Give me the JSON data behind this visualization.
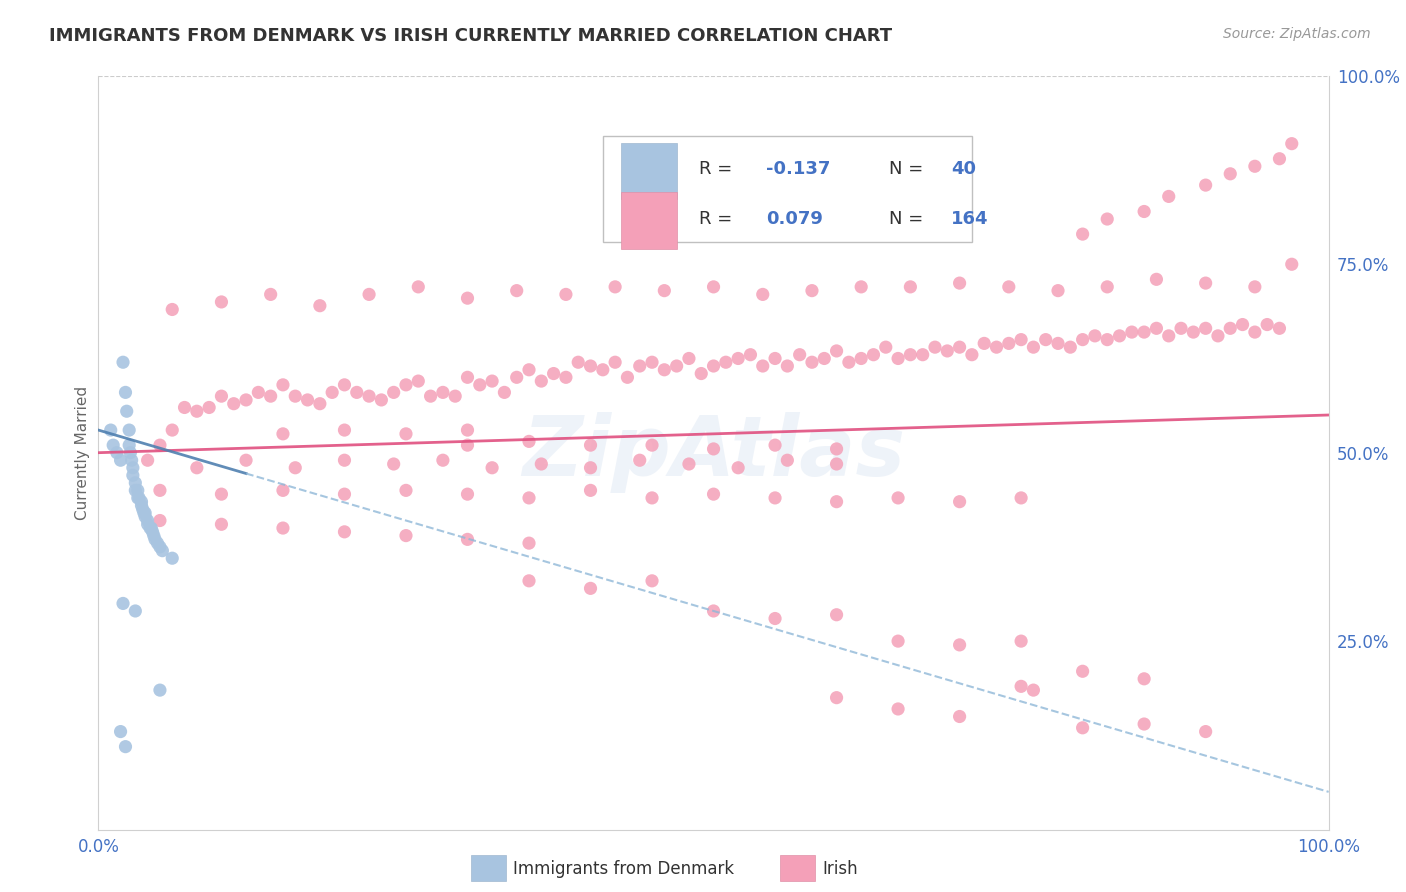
{
  "title": "IMMIGRANTS FROM DENMARK VS IRISH CURRENTLY MARRIED CORRELATION CHART",
  "source_text": "Source: ZipAtlas.com",
  "ylabel": "Currently Married",
  "xlim": [
    0.0,
    1.0
  ],
  "ylim": [
    0.0,
    1.0
  ],
  "ytick_labels": [
    "25.0%",
    "50.0%",
    "75.0%",
    "100.0%"
  ],
  "ytick_values": [
    0.25,
    0.5,
    0.75,
    1.0
  ],
  "denmark_color": "#a8c4e0",
  "irish_color": "#f4a0b8",
  "irish_line_color": "#e05080",
  "denmark_line_color": "#5080b0",
  "denmark_dashed_color": "#90b8d8",
  "watermark": "ZipAtlas",
  "background_color": "#ffffff",
  "axis_label_color": "#4472c4",
  "denmark_scatter": [
    [
      0.01,
      0.53
    ],
    [
      0.012,
      0.51
    ],
    [
      0.015,
      0.5
    ],
    [
      0.018,
      0.49
    ],
    [
      0.02,
      0.62
    ],
    [
      0.022,
      0.58
    ],
    [
      0.023,
      0.555
    ],
    [
      0.025,
      0.53
    ],
    [
      0.025,
      0.51
    ],
    [
      0.026,
      0.5
    ],
    [
      0.027,
      0.49
    ],
    [
      0.028,
      0.48
    ],
    [
      0.028,
      0.47
    ],
    [
      0.03,
      0.46
    ],
    [
      0.03,
      0.45
    ],
    [
      0.032,
      0.45
    ],
    [
      0.032,
      0.44
    ],
    [
      0.033,
      0.44
    ],
    [
      0.035,
      0.435
    ],
    [
      0.035,
      0.43
    ],
    [
      0.036,
      0.425
    ],
    [
      0.037,
      0.42
    ],
    [
      0.038,
      0.42
    ],
    [
      0.038,
      0.415
    ],
    [
      0.04,
      0.41
    ],
    [
      0.04,
      0.405
    ],
    [
      0.042,
      0.4
    ],
    [
      0.043,
      0.4
    ],
    [
      0.044,
      0.395
    ],
    [
      0.045,
      0.39
    ],
    [
      0.046,
      0.385
    ],
    [
      0.048,
      0.38
    ],
    [
      0.05,
      0.375
    ],
    [
      0.052,
      0.37
    ],
    [
      0.06,
      0.36
    ],
    [
      0.02,
      0.3
    ],
    [
      0.03,
      0.29
    ],
    [
      0.05,
      0.185
    ],
    [
      0.018,
      0.13
    ],
    [
      0.022,
      0.11
    ]
  ],
  "irish_scatter": [
    [
      0.05,
      0.51
    ],
    [
      0.06,
      0.53
    ],
    [
      0.07,
      0.56
    ],
    [
      0.08,
      0.555
    ],
    [
      0.09,
      0.56
    ],
    [
      0.1,
      0.575
    ],
    [
      0.11,
      0.565
    ],
    [
      0.12,
      0.57
    ],
    [
      0.13,
      0.58
    ],
    [
      0.14,
      0.575
    ],
    [
      0.15,
      0.59
    ],
    [
      0.16,
      0.575
    ],
    [
      0.17,
      0.57
    ],
    [
      0.18,
      0.565
    ],
    [
      0.19,
      0.58
    ],
    [
      0.2,
      0.59
    ],
    [
      0.21,
      0.58
    ],
    [
      0.22,
      0.575
    ],
    [
      0.23,
      0.57
    ],
    [
      0.24,
      0.58
    ],
    [
      0.25,
      0.59
    ],
    [
      0.26,
      0.595
    ],
    [
      0.27,
      0.575
    ],
    [
      0.28,
      0.58
    ],
    [
      0.29,
      0.575
    ],
    [
      0.3,
      0.6
    ],
    [
      0.31,
      0.59
    ],
    [
      0.32,
      0.595
    ],
    [
      0.33,
      0.58
    ],
    [
      0.34,
      0.6
    ],
    [
      0.35,
      0.61
    ],
    [
      0.36,
      0.595
    ],
    [
      0.37,
      0.605
    ],
    [
      0.38,
      0.6
    ],
    [
      0.39,
      0.62
    ],
    [
      0.4,
      0.615
    ],
    [
      0.41,
      0.61
    ],
    [
      0.42,
      0.62
    ],
    [
      0.43,
      0.6
    ],
    [
      0.44,
      0.615
    ],
    [
      0.45,
      0.62
    ],
    [
      0.46,
      0.61
    ],
    [
      0.47,
      0.615
    ],
    [
      0.48,
      0.625
    ],
    [
      0.49,
      0.605
    ],
    [
      0.5,
      0.615
    ],
    [
      0.51,
      0.62
    ],
    [
      0.52,
      0.625
    ],
    [
      0.53,
      0.63
    ],
    [
      0.54,
      0.615
    ],
    [
      0.55,
      0.625
    ],
    [
      0.56,
      0.615
    ],
    [
      0.57,
      0.63
    ],
    [
      0.58,
      0.62
    ],
    [
      0.59,
      0.625
    ],
    [
      0.6,
      0.635
    ],
    [
      0.61,
      0.62
    ],
    [
      0.62,
      0.625
    ],
    [
      0.63,
      0.63
    ],
    [
      0.64,
      0.64
    ],
    [
      0.65,
      0.625
    ],
    [
      0.66,
      0.63
    ],
    [
      0.67,
      0.63
    ],
    [
      0.68,
      0.64
    ],
    [
      0.69,
      0.635
    ],
    [
      0.7,
      0.64
    ],
    [
      0.71,
      0.63
    ],
    [
      0.72,
      0.645
    ],
    [
      0.73,
      0.64
    ],
    [
      0.74,
      0.645
    ],
    [
      0.75,
      0.65
    ],
    [
      0.76,
      0.64
    ],
    [
      0.77,
      0.65
    ],
    [
      0.78,
      0.645
    ],
    [
      0.79,
      0.64
    ],
    [
      0.8,
      0.65
    ],
    [
      0.81,
      0.655
    ],
    [
      0.82,
      0.65
    ],
    [
      0.83,
      0.655
    ],
    [
      0.84,
      0.66
    ],
    [
      0.85,
      0.66
    ],
    [
      0.86,
      0.665
    ],
    [
      0.87,
      0.655
    ],
    [
      0.88,
      0.665
    ],
    [
      0.89,
      0.66
    ],
    [
      0.9,
      0.665
    ],
    [
      0.91,
      0.655
    ],
    [
      0.92,
      0.665
    ],
    [
      0.93,
      0.67
    ],
    [
      0.94,
      0.66
    ],
    [
      0.95,
      0.67
    ],
    [
      0.96,
      0.665
    ],
    [
      0.97,
      0.75
    ],
    [
      0.06,
      0.69
    ],
    [
      0.1,
      0.7
    ],
    [
      0.14,
      0.71
    ],
    [
      0.18,
      0.695
    ],
    [
      0.22,
      0.71
    ],
    [
      0.26,
      0.72
    ],
    [
      0.3,
      0.705
    ],
    [
      0.34,
      0.715
    ],
    [
      0.38,
      0.71
    ],
    [
      0.42,
      0.72
    ],
    [
      0.46,
      0.715
    ],
    [
      0.5,
      0.72
    ],
    [
      0.54,
      0.71
    ],
    [
      0.58,
      0.715
    ],
    [
      0.62,
      0.72
    ],
    [
      0.66,
      0.72
    ],
    [
      0.7,
      0.725
    ],
    [
      0.74,
      0.72
    ],
    [
      0.78,
      0.715
    ],
    [
      0.82,
      0.72
    ],
    [
      0.86,
      0.73
    ],
    [
      0.9,
      0.725
    ],
    [
      0.94,
      0.72
    ],
    [
      0.8,
      0.79
    ],
    [
      0.82,
      0.81
    ],
    [
      0.85,
      0.82
    ],
    [
      0.87,
      0.84
    ],
    [
      0.9,
      0.855
    ],
    [
      0.92,
      0.87
    ],
    [
      0.94,
      0.88
    ],
    [
      0.96,
      0.89
    ],
    [
      0.97,
      0.91
    ],
    [
      0.04,
      0.49
    ],
    [
      0.08,
      0.48
    ],
    [
      0.12,
      0.49
    ],
    [
      0.16,
      0.48
    ],
    [
      0.2,
      0.49
    ],
    [
      0.24,
      0.485
    ],
    [
      0.28,
      0.49
    ],
    [
      0.32,
      0.48
    ],
    [
      0.36,
      0.485
    ],
    [
      0.4,
      0.48
    ],
    [
      0.44,
      0.49
    ],
    [
      0.48,
      0.485
    ],
    [
      0.52,
      0.48
    ],
    [
      0.56,
      0.49
    ],
    [
      0.6,
      0.485
    ],
    [
      0.05,
      0.45
    ],
    [
      0.1,
      0.445
    ],
    [
      0.15,
      0.45
    ],
    [
      0.2,
      0.445
    ],
    [
      0.25,
      0.45
    ],
    [
      0.3,
      0.445
    ],
    [
      0.35,
      0.44
    ],
    [
      0.4,
      0.45
    ],
    [
      0.45,
      0.44
    ],
    [
      0.5,
      0.445
    ],
    [
      0.55,
      0.44
    ],
    [
      0.6,
      0.435
    ],
    [
      0.65,
      0.44
    ],
    [
      0.7,
      0.435
    ],
    [
      0.75,
      0.44
    ],
    [
      0.3,
      0.51
    ],
    [
      0.35,
      0.515
    ],
    [
      0.4,
      0.51
    ],
    [
      0.45,
      0.51
    ],
    [
      0.5,
      0.505
    ],
    [
      0.55,
      0.51
    ],
    [
      0.6,
      0.505
    ],
    [
      0.15,
      0.525
    ],
    [
      0.2,
      0.53
    ],
    [
      0.25,
      0.525
    ],
    [
      0.3,
      0.53
    ],
    [
      0.05,
      0.41
    ],
    [
      0.1,
      0.405
    ],
    [
      0.15,
      0.4
    ],
    [
      0.2,
      0.395
    ],
    [
      0.25,
      0.39
    ],
    [
      0.3,
      0.385
    ],
    [
      0.35,
      0.38
    ],
    [
      0.35,
      0.33
    ],
    [
      0.4,
      0.32
    ],
    [
      0.45,
      0.33
    ],
    [
      0.5,
      0.29
    ],
    [
      0.55,
      0.28
    ],
    [
      0.6,
      0.285
    ],
    [
      0.65,
      0.25
    ],
    [
      0.7,
      0.245
    ],
    [
      0.75,
      0.25
    ],
    [
      0.8,
      0.21
    ],
    [
      0.85,
      0.2
    ],
    [
      0.6,
      0.175
    ],
    [
      0.65,
      0.16
    ],
    [
      0.7,
      0.15
    ],
    [
      0.8,
      0.135
    ],
    [
      0.85,
      0.14
    ],
    [
      0.9,
      0.13
    ],
    [
      0.75,
      0.19
    ],
    [
      0.76,
      0.185
    ]
  ]
}
